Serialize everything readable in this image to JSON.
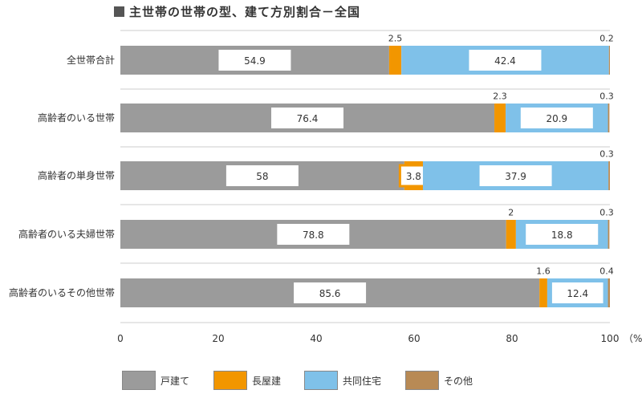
{
  "title": "主世帯の世帯の型、建て方別割合－全国",
  "chart_data": {
    "type": "bar",
    "orientation": "horizontal",
    "stacked": true,
    "title": "主世帯の世帯の型、建て方別割合－全国",
    "categories": [
      "全世帯合計",
      "高齢者のいる世帯",
      "高齢者の単身世帯",
      "高齢者のいる夫婦世帯",
      "高齢者のいるその他世帯"
    ],
    "series": [
      {
        "name": "戸建て",
        "color": "#9b9b9b",
        "values": [
          54.9,
          76.4,
          58,
          78.8,
          85.6
        ]
      },
      {
        "name": "長屋建",
        "color": "#f29600",
        "values": [
          2.5,
          2.3,
          3.8,
          2,
          1.6
        ]
      },
      {
        "name": "共同住宅",
        "color": "#7fc1e9",
        "values": [
          42.4,
          20.9,
          37.9,
          18.8,
          12.4
        ]
      },
      {
        "name": "その他",
        "color": "#b88a55",
        "values": [
          0.2,
          0.3,
          0.3,
          0.3,
          0.4
        ]
      }
    ],
    "xlim": [
      0,
      100
    ],
    "xticks": [
      "0",
      "20",
      "40",
      "60",
      "80",
      "100"
    ],
    "xunit": "（%）",
    "grid": false,
    "legend": "bottom"
  }
}
